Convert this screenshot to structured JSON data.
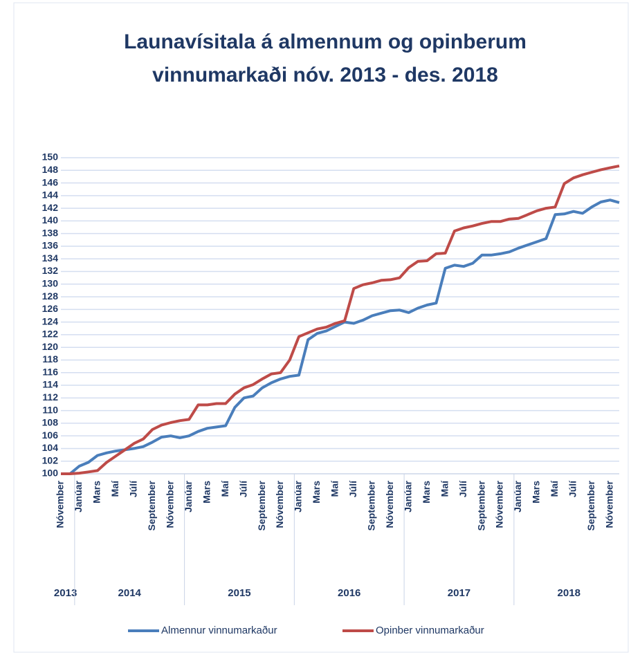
{
  "chart_data": {
    "type": "line",
    "title": [
      "Launavísitala  á almennum  og opinberum",
      "vinnumarkaði  nóv. 2013 - des. 2018"
    ],
    "categories": [
      "Nóvember",
      null,
      "Janúar",
      null,
      "Mars",
      null,
      "Maí",
      null,
      "Júlí",
      null,
      "September",
      null,
      "Nóvember",
      null,
      "Janúar",
      null,
      "Mars",
      null,
      "Maí",
      null,
      "Júlí",
      null,
      "September",
      null,
      "Nóvember",
      null,
      "Janúar",
      null,
      "Mars",
      null,
      "Maí",
      null,
      "Júlí",
      null,
      "September",
      null,
      "Nóvember",
      null,
      "Janúar",
      null,
      "Mars",
      null,
      "Maí",
      null,
      "Júlí",
      null,
      "September",
      null,
      "Nóvember",
      null,
      "Janúar",
      null,
      "Mars",
      null,
      "Maí",
      null,
      "Júlí",
      null,
      "September",
      null,
      "Nóvember",
      null
    ],
    "category_years": [
      "2013",
      "2013",
      "2014",
      "2014",
      "2014",
      "2014",
      "2014",
      "2014",
      "2014",
      "2014",
      "2014",
      "2014",
      "2014",
      "2014",
      "2015",
      "2015",
      "2015",
      "2015",
      "2015",
      "2015",
      "2015",
      "2015",
      "2015",
      "2015",
      "2015",
      "2015",
      "2016",
      "2016",
      "2016",
      "2016",
      "2016",
      "2016",
      "2016",
      "2016",
      "2016",
      "2016",
      "2016",
      "2016",
      "2017",
      "2017",
      "2017",
      "2017",
      "2017",
      "2017",
      "2017",
      "2017",
      "2017",
      "2017",
      "2017",
      "2017",
      "2018",
      "2018",
      "2018",
      "2018",
      "2018",
      "2018",
      "2018",
      "2018",
      "2018",
      "2018",
      "2018",
      "2018"
    ],
    "series": [
      {
        "name": "Almennur vinnumarkaður",
        "color": "#4a7ebb",
        "values": [
          100,
          100,
          101.2,
          101.8,
          102.9,
          103.3,
          103.6,
          103.8,
          104.0,
          104.3,
          105.0,
          105.8,
          106.0,
          105.7,
          106.0,
          106.7,
          107.2,
          107.4,
          107.6,
          110.5,
          112.0,
          112.3,
          113.6,
          114.4,
          115.0,
          115.4,
          115.6,
          121.2,
          122.2,
          122.6,
          123.3,
          124.0,
          123.8,
          124.3,
          125.0,
          125.4,
          125.8,
          125.9,
          125.5,
          126.2,
          126.7,
          127.0,
          132.5,
          133.0,
          132.8,
          133.3,
          134.6,
          134.6,
          134.8,
          135.1,
          135.7,
          136.2,
          136.7,
          137.2,
          141.0,
          141.1,
          141.5,
          141.2,
          142.2,
          143.0,
          143.3,
          142.9
        ]
      },
      {
        "name": "Opinber vinnumarkaður",
        "color": "#be4b48",
        "values": [
          100,
          100,
          100.1,
          100.3,
          100.5,
          101.8,
          102.8,
          103.8,
          104.8,
          105.5,
          107.0,
          107.7,
          108.1,
          108.4,
          108.6,
          110.9,
          110.9,
          111.1,
          111.1,
          112.6,
          113.6,
          114.1,
          115.0,
          115.8,
          116.0,
          118.0,
          121.7,
          122.3,
          122.9,
          123.2,
          123.8,
          124.2,
          129.3,
          129.9,
          130.2,
          130.6,
          130.7,
          131.0,
          132.6,
          133.6,
          133.7,
          134.8,
          134.9,
          138.4,
          138.9,
          139.2,
          139.6,
          139.9,
          139.9,
          140.3,
          140.4,
          141.0,
          141.6,
          142.0,
          142.2,
          145.9,
          146.8,
          147.3,
          147.7,
          148.1,
          148.4,
          148.7
        ]
      }
    ],
    "ylim": [
      100,
      150
    ],
    "yticks": [
      100,
      102,
      104,
      106,
      108,
      110,
      112,
      114,
      116,
      118,
      120,
      122,
      124,
      126,
      128,
      130,
      132,
      134,
      136,
      138,
      140,
      142,
      144,
      146,
      148,
      150
    ],
    "grid": true
  }
}
